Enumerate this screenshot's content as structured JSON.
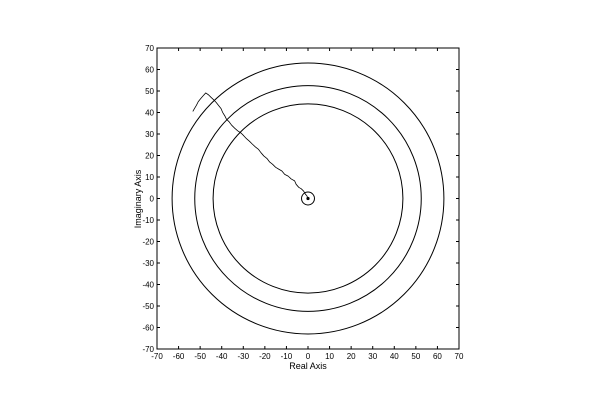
{
  "chart_data": {
    "type": "scatter",
    "title": "",
    "xlabel": "Real Axis",
    "ylabel": "Imaginary Axis",
    "xlim": [
      -70,
      70
    ],
    "ylim": [
      -70,
      70
    ],
    "xticks": [
      -70,
      -60,
      -50,
      -40,
      -30,
      -20,
      -10,
      0,
      10,
      20,
      30,
      40,
      50,
      60,
      70
    ],
    "yticks": [
      -70,
      -60,
      -50,
      -40,
      -30,
      -20,
      -10,
      0,
      10,
      20,
      30,
      40,
      50,
      60,
      70
    ],
    "grid": false,
    "circles": [
      {
        "cx": 0,
        "cy": 0,
        "r": 63
      },
      {
        "cx": 0,
        "cy": 0,
        "r": 52.5
      },
      {
        "cx": 0,
        "cy": 0,
        "r": 44
      },
      {
        "cx": 0,
        "cy": 0,
        "r": 3
      }
    ],
    "series": [
      {
        "values": [
          [
            0,
            0
          ],
          [
            -0.5,
            1.2
          ],
          [
            -1.2,
            2.0
          ],
          [
            -2.0,
            3.4
          ],
          [
            -3.1,
            4.5
          ],
          [
            -4.3,
            5.2
          ],
          [
            -5.5,
            6.6
          ],
          [
            -6.2,
            8.2
          ],
          [
            -7.8,
            9.1
          ],
          [
            -9.2,
            10.4
          ],
          [
            -10.8,
            11.2
          ],
          [
            -12.1,
            12.8
          ],
          [
            -13.5,
            13.6
          ],
          [
            -15.0,
            14.5
          ],
          [
            -16.4,
            15.9
          ],
          [
            -17.8,
            17.0
          ],
          [
            -19.0,
            18.6
          ],
          [
            -20.5,
            19.8
          ],
          [
            -21.8,
            21.3
          ],
          [
            -22.9,
            22.8
          ],
          [
            -24.4,
            24.0
          ],
          [
            -25.8,
            25.3
          ],
          [
            -27.1,
            26.6
          ],
          [
            -28.5,
            27.8
          ],
          [
            -29.8,
            29.2
          ],
          [
            -31.0,
            30.4
          ],
          [
            -32.6,
            31.5
          ],
          [
            -34.0,
            32.7
          ],
          [
            -35.4,
            34.1
          ],
          [
            -36.5,
            35.6
          ],
          [
            -37.8,
            36.9
          ],
          [
            -38.6,
            38.5
          ],
          [
            -39.6,
            40.1
          ],
          [
            -40.3,
            41.8
          ],
          [
            -41.4,
            43.2
          ],
          [
            -42.5,
            44.6
          ],
          [
            -43.6,
            45.8
          ],
          [
            -44.9,
            47.0
          ],
          [
            -46.1,
            48.2
          ],
          [
            -47.4,
            49.1
          ],
          [
            -48.6,
            47.8
          ],
          [
            -49.8,
            46.4
          ],
          [
            -50.9,
            45.0
          ],
          [
            -51.7,
            43.4
          ],
          [
            -52.6,
            41.9
          ],
          [
            -53.4,
            40.5
          ]
        ]
      }
    ],
    "legend": "none"
  }
}
